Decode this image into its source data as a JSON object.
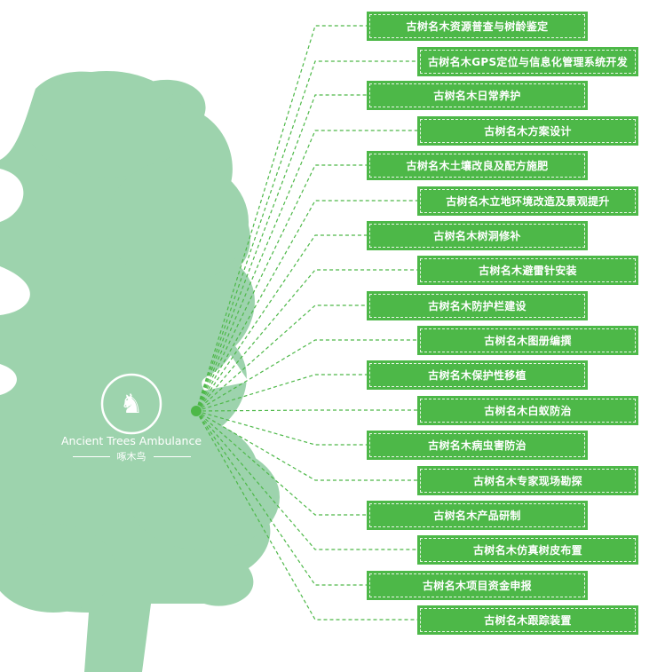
{
  "colors": {
    "box": "#4db848",
    "tree": "#9dd3ad",
    "line": "#4db848"
  },
  "logo": {
    "english": "Ancient Trees Ambulance",
    "chinese": "啄木鸟",
    "icon": "woodpecker-icon"
  },
  "items": [
    {
      "label": "古树名木资源普查与树龄鉴定"
    },
    {
      "label": "古树名木GPS定位与信息化管理系统开发"
    },
    {
      "label": "古树名木日常养护"
    },
    {
      "label": "古树名木方案设计"
    },
    {
      "label": "古树名木土壤改良及配方施肥"
    },
    {
      "label": "古树名木立地环境改造及景观提升"
    },
    {
      "label": "古树名木树洞修补"
    },
    {
      "label": "古树名木避雷针安装"
    },
    {
      "label": "古树名木防护栏建设"
    },
    {
      "label": "古树名木图册编撰"
    },
    {
      "label": "古树名木保护性移植"
    },
    {
      "label": "古树名木白蚁防治"
    },
    {
      "label": "古树名木病虫害防治"
    },
    {
      "label": "古树名木专家现场勘探"
    },
    {
      "label": "古树名木产品研制"
    },
    {
      "label": "古树名木仿真树皮布置"
    },
    {
      "label": "古树名木项目资金申报"
    },
    {
      "label": "古树名木跟踪装置"
    }
  ]
}
